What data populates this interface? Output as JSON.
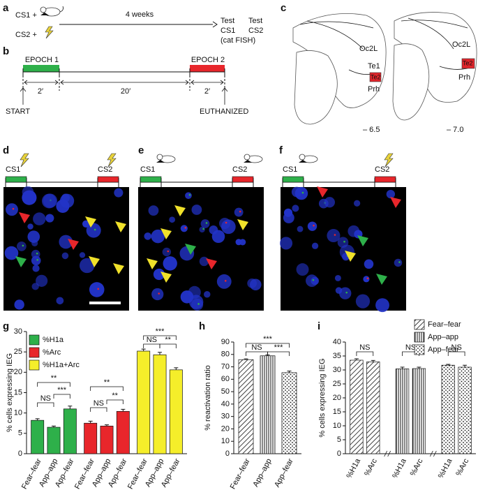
{
  "panel_labels": [
    "a",
    "b",
    "c",
    "d",
    "e",
    "f",
    "g",
    "h",
    "i"
  ],
  "a": {
    "cs1": "CS1 +",
    "cs2": "CS2 +",
    "interval": "4 weeks",
    "test1": [
      "Test",
      "CS1",
      "(cat FISH)"
    ],
    "test2": [
      "Test",
      "CS2"
    ]
  },
  "b": {
    "epoch1": "EPOCH 1",
    "epoch2": "EPOCH 2",
    "durations": [
      "2′",
      "20′",
      "2′"
    ],
    "start": "START",
    "end": "EUTHANIZED"
  },
  "c": {
    "sections": [
      {
        "regions": [
          "Oc2L",
          "Te1",
          "Te2",
          "Prh"
        ],
        "coordinate": "– 6.5"
      },
      {
        "regions": [
          "Oc2L",
          "Te2",
          "Prh"
        ],
        "coordinate": "– 7.0"
      }
    ]
  },
  "protocols": [
    {
      "first": "CS1",
      "second": "CS2"
    },
    {
      "first": "CS1",
      "second": "CS2"
    },
    {
      "first": "CS1",
      "second": "CS2"
    }
  ],
  "chart_data": [
    {
      "type": "bar",
      "y_label": "% cells expressing IEG",
      "categories": [
        "Fear–fear",
        "App–app",
        "App–fear",
        "Fear–fear",
        "App–app",
        "App–fear",
        "Fear–fear",
        "App–app",
        "App–fear"
      ],
      "series": [
        {
          "name": "%H1a",
          "color": "#2eb04a",
          "values": [
            8.2,
            6.5,
            11.0,
            null,
            null,
            null,
            null,
            null,
            null
          ],
          "errors": [
            0.4,
            0.3,
            0.7,
            null,
            null,
            null,
            null,
            null,
            null
          ]
        },
        {
          "name": "%Arc",
          "color": "#e8262b",
          "values": [
            null,
            null,
            null,
            7.5,
            6.8,
            10.4,
            null,
            null,
            null
          ],
          "errors": [
            null,
            null,
            null,
            0.5,
            0.3,
            0.5,
            null,
            null,
            null
          ]
        },
        {
          "name": "%H1a+Arc",
          "color": "#f5ee2a",
          "values": [
            null,
            null,
            null,
            null,
            null,
            null,
            25.2,
            24.3,
            20.6
          ],
          "errors": [
            null,
            null,
            null,
            null,
            null,
            null,
            0.5,
            0.6,
            0.5
          ]
        }
      ],
      "ylim": [
        0,
        30
      ],
      "yticks": [
        0,
        5,
        10,
        15,
        20,
        25,
        30
      ],
      "legend": "upper left",
      "annotations": [
        "**",
        "NS",
        "***",
        "**",
        "NS",
        "**",
        "***",
        "NS",
        "**"
      ]
    },
    {
      "type": "bar",
      "y_label": "% reactivation ratio",
      "categories": [
        "Fear–fear",
        "App–app",
        "App–fear"
      ],
      "values": [
        75.8,
        78.9,
        65.3
      ],
      "errors": [
        0.6,
        0.7,
        1.3
      ],
      "patterns": [
        "diagonal",
        "vertical",
        "dots"
      ],
      "ylim": [
        0,
        90
      ],
      "yticks": [
        0,
        10,
        20,
        30,
        40,
        50,
        60,
        70,
        80,
        90
      ],
      "annotations": [
        "***",
        "NS",
        "***"
      ]
    },
    {
      "type": "bar",
      "y_label": "% cells expressing IEG",
      "categories": [
        "%H1a",
        "%Arc",
        "%H1a",
        "%Arc",
        "%H1a",
        "%Arc"
      ],
      "series": [
        {
          "name": "Fear–fear",
          "pattern": "diagonal",
          "values": [
            33.5,
            32.9,
            null,
            null,
            null,
            null
          ],
          "errors": [
            0.5,
            0.5,
            null,
            null,
            null,
            null
          ]
        },
        {
          "name": "App–app",
          "pattern": "vertical",
          "values": [
            null,
            null,
            30.4,
            30.5,
            null,
            null
          ],
          "errors": [
            null,
            null,
            0.6,
            0.5,
            null,
            null
          ]
        },
        {
          "name": "App–fear",
          "pattern": "dots",
          "values": [
            null,
            null,
            null,
            null,
            31.7,
            31.0
          ],
          "errors": [
            null,
            null,
            null,
            null,
            0.3,
            0.7
          ]
        }
      ],
      "ylim": [
        0,
        40
      ],
      "yticks": [
        0,
        5,
        10,
        15,
        20,
        25,
        30,
        35,
        40
      ],
      "legend": "upper right",
      "annotations": [
        "NS",
        "NS",
        "NS"
      ]
    }
  ]
}
